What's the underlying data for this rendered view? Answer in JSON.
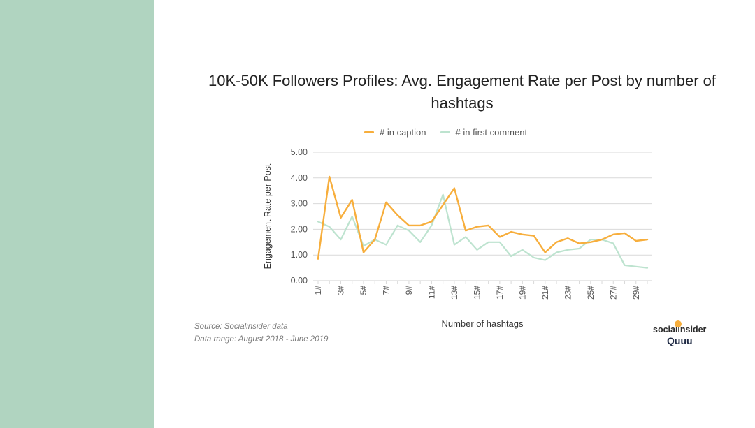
{
  "colors": {
    "sidebar": "#b0d4c0",
    "caption": "#f7ae3c",
    "first_comment": "#bde3cf",
    "grid": "#d9d9d9",
    "axis_text": "#555555",
    "brand_dot": "#f7ae3c"
  },
  "source": {
    "line1": "Source: Socialinsider data",
    "line2": "Data range: August 2018 - June 2019"
  },
  "brand": {
    "socialinsider": "socialinsider",
    "quuu": "Quuu"
  },
  "chart_data": {
    "type": "line",
    "title": "10K-50K Followers Profiles: Avg. Engagement Rate per Post by number of hashtags",
    "xlabel": "Number of hashtags",
    "ylabel": "Engagement Rate per Post",
    "ylim": [
      0,
      5
    ],
    "yticks": [
      "0.00",
      "1.00",
      "2.00",
      "3.00",
      "4.00",
      "5.00"
    ],
    "xtick_labels": [
      "1#",
      "3#",
      "5#",
      "7#",
      "9#",
      "11#",
      "13#",
      "15#",
      "17#",
      "19#",
      "21#",
      "23#",
      "25#",
      "27#",
      "29#"
    ],
    "grid": true,
    "legend_position": "top",
    "x": [
      1,
      2,
      3,
      4,
      5,
      6,
      7,
      8,
      9,
      10,
      11,
      12,
      13,
      14,
      15,
      16,
      17,
      18,
      19,
      20,
      21,
      22,
      23,
      24,
      25,
      26,
      27,
      28,
      29,
      30
    ],
    "series": [
      {
        "name": "# in caption",
        "values": [
          0.85,
          4.05,
          2.45,
          3.15,
          1.1,
          1.6,
          3.05,
          2.55,
          2.15,
          2.15,
          2.3,
          2.95,
          3.6,
          1.95,
          2.1,
          2.15,
          1.7,
          1.9,
          1.8,
          1.75,
          1.1,
          1.5,
          1.65,
          1.45,
          1.5,
          1.6,
          1.8,
          1.85,
          1.55,
          1.6
        ]
      },
      {
        "name": "# in first comment",
        "values": [
          2.3,
          2.1,
          1.6,
          2.5,
          1.35,
          1.6,
          1.4,
          2.15,
          1.95,
          1.5,
          2.15,
          3.35,
          1.4,
          1.7,
          1.2,
          1.5,
          1.5,
          0.95,
          1.2,
          0.9,
          0.8,
          1.1,
          1.2,
          1.25,
          1.6,
          1.6,
          1.45,
          0.6,
          0.55,
          0.5
        ]
      }
    ]
  }
}
